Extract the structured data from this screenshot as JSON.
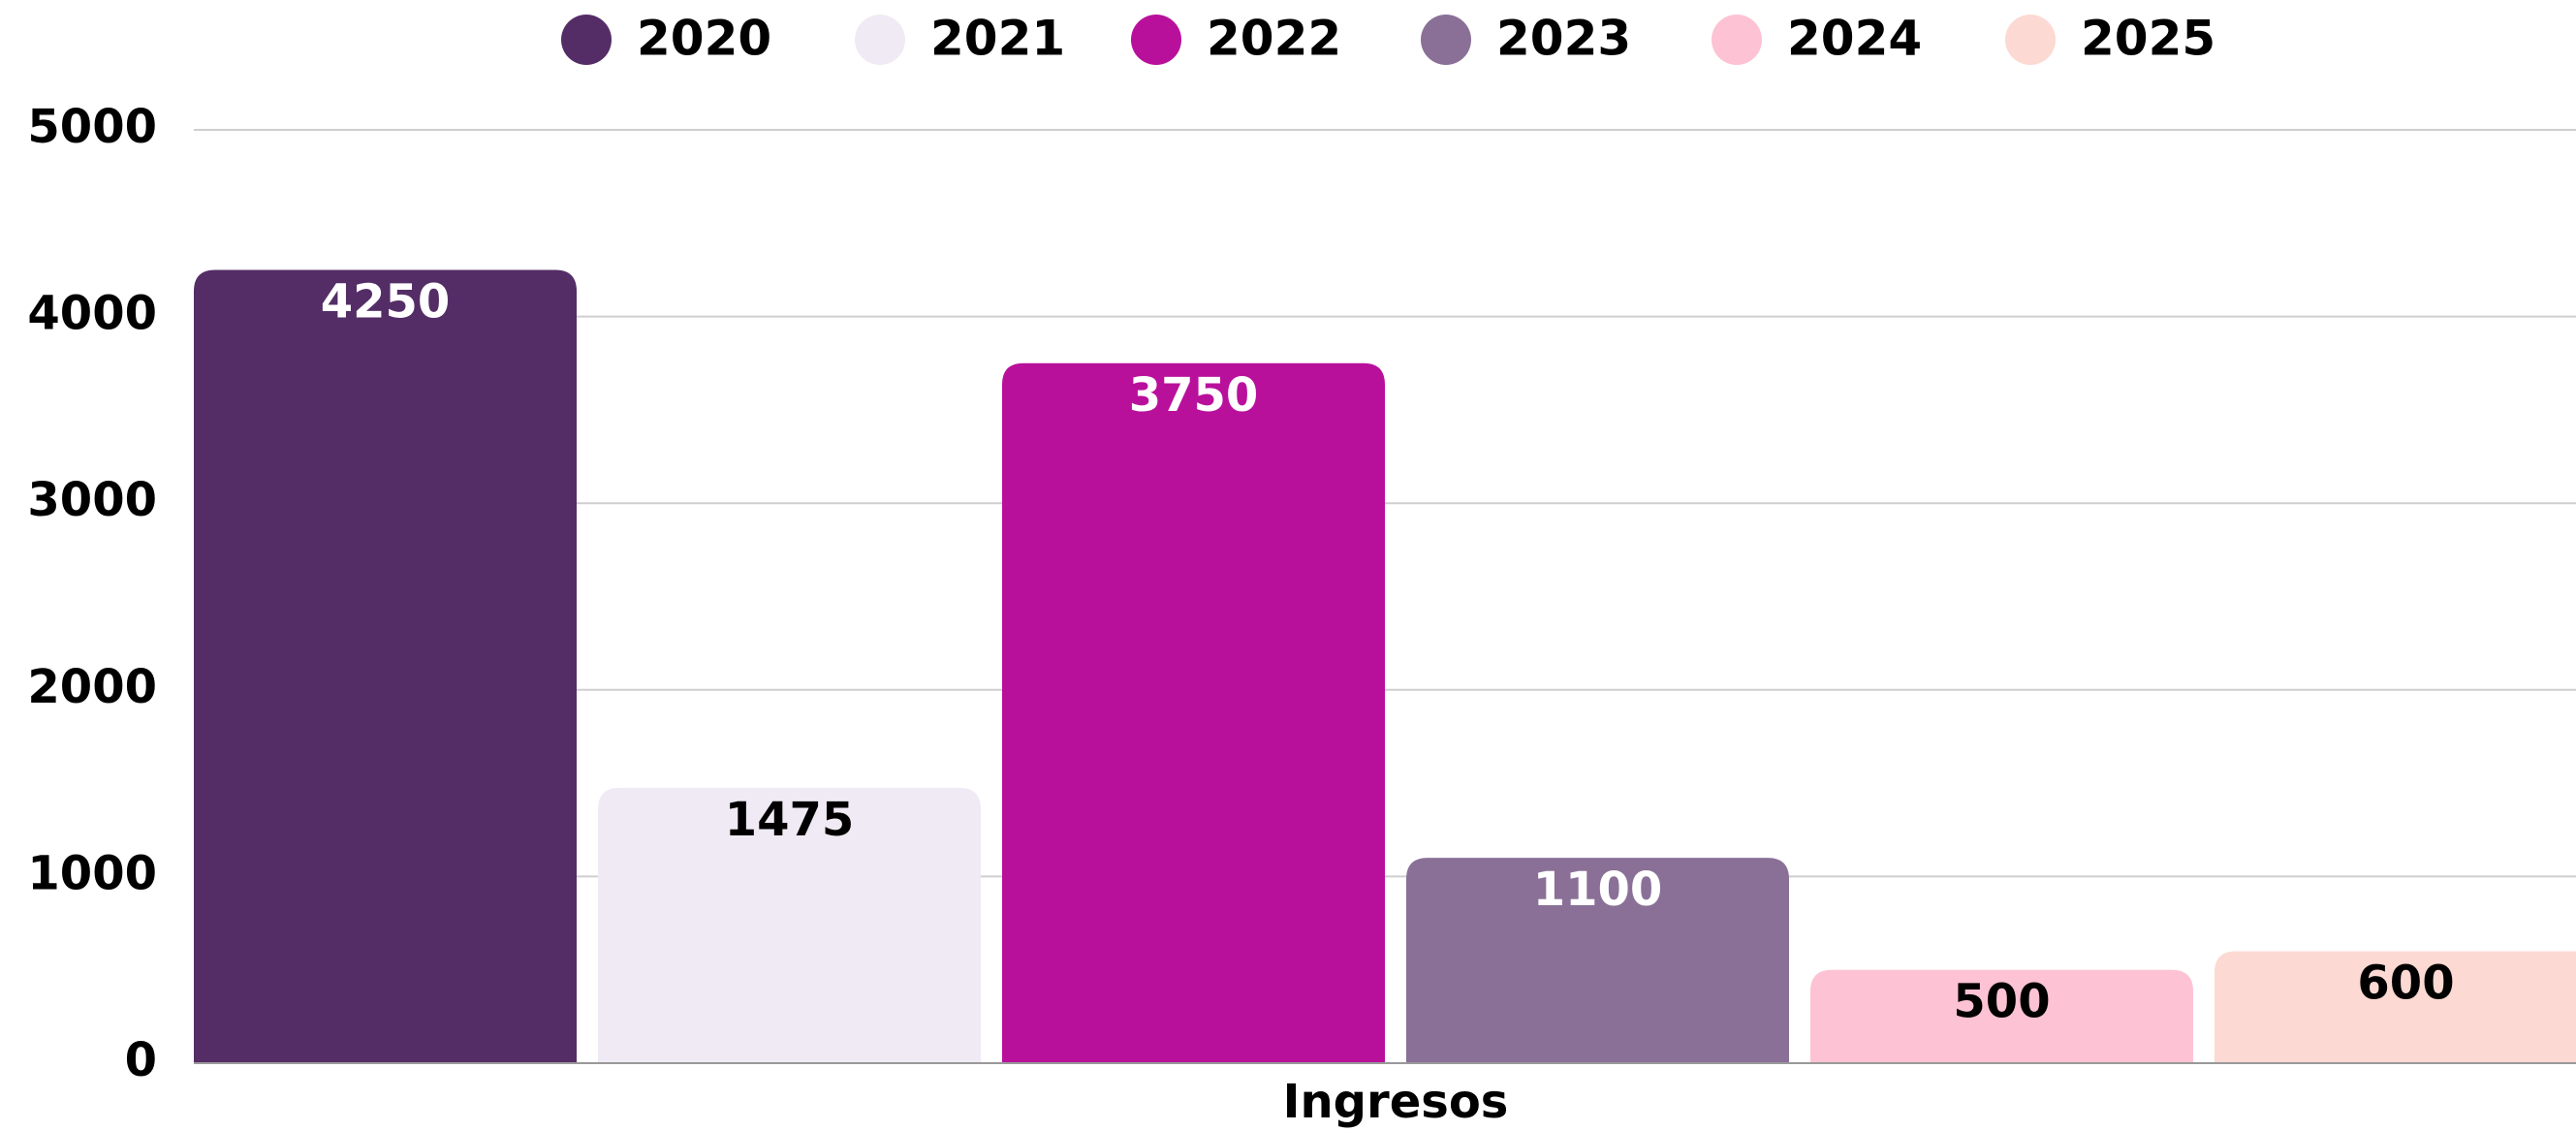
{
  "chart_data": {
    "type": "bar",
    "categories": [
      "Ingresos"
    ],
    "series": [
      {
        "name": "2020",
        "color": "#542d66",
        "values": [
          4250
        ]
      },
      {
        "name": "2021",
        "color": "#f0eaf5",
        "values": [
          1475
        ]
      },
      {
        "name": "2022",
        "color": "#b9109c",
        "values": [
          3750
        ]
      },
      {
        "name": "2023",
        "color": "#8a7097",
        "values": [
          1100
        ]
      },
      {
        "name": "2024",
        "color": "#fdc2d3",
        "values": [
          500
        ]
      },
      {
        "name": "2025",
        "color": "#fdd9d3",
        "values": [
          600
        ]
      }
    ],
    "ylim": [
      0,
      5000
    ],
    "yticks": [
      0,
      1000,
      2000,
      3000,
      4000,
      5000
    ],
    "grid": true,
    "legend": "top"
  }
}
